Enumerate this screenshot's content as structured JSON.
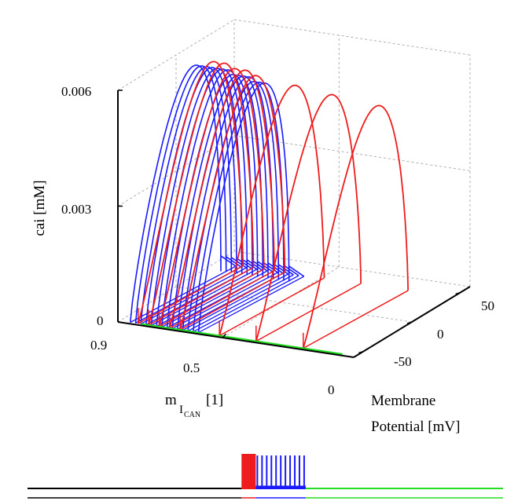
{
  "chart_data": [
    {
      "type": "line-3d",
      "title": "",
      "axes": {
        "z": {
          "label": "cai [mM]",
          "range": [
            0,
            0.006
          ],
          "ticks": [
            "0",
            "0.003",
            "0.006"
          ]
        },
        "x": {
          "label_main": "m",
          "label_sub_I": "I",
          "label_sub_CAN": "CAN",
          "label_unit": " [1]",
          "range": [
            0.9,
            0
          ],
          "ticks": [
            "0.9",
            "0.5",
            "0"
          ]
        },
        "y": {
          "label_line1": "Membrane",
          "label_line2": "Potential [mV]",
          "range": [
            -60,
            60
          ],
          "ticks": [
            "50",
            "0",
            "-50"
          ]
        }
      },
      "grid": true,
      "colors": {
        "blue": "#1a1aff",
        "red": "#ee1c1c",
        "green": "#22dd22",
        "black": "#000000",
        "grid": "#b0b0b0"
      },
      "series": [
        {
          "color": "blue",
          "loops": [
            {
              "m": 0.86,
              "cai_peak": 0.0057
            },
            {
              "m": 0.84,
              "cai_peak": 0.0057
            },
            {
              "m": 0.82,
              "cai_peak": 0.0057
            },
            {
              "m": 0.8,
              "cai_peak": 0.0057
            },
            {
              "m": 0.78,
              "cai_peak": 0.0057
            },
            {
              "m": 0.76,
              "cai_peak": 0.0057
            },
            {
              "m": 0.74,
              "cai_peak": 0.0057
            },
            {
              "m": 0.72,
              "cai_peak": 0.0056
            },
            {
              "m": 0.7,
              "cai_peak": 0.0056
            },
            {
              "m": 0.68,
              "cai_peak": 0.0056
            },
            {
              "m": 0.66,
              "cai_peak": 0.0056
            },
            {
              "m": 0.64,
              "cai_peak": 0.0055
            },
            {
              "m": 0.62,
              "cai_peak": 0.0055
            },
            {
              "m": 0.6,
              "cai_peak": 0.0055
            }
          ]
        },
        {
          "color": "red",
          "loops": [
            {
              "m": 0.83,
              "cai_peak": 0.0057
            },
            {
              "m": 0.79,
              "cai_peak": 0.0057
            },
            {
              "m": 0.75,
              "cai_peak": 0.0056
            },
            {
              "m": 0.71,
              "cai_peak": 0.0056
            },
            {
              "m": 0.67,
              "cai_peak": 0.0055
            },
            {
              "m": 0.52,
              "cai_peak": 0.0054
            },
            {
              "m": 0.38,
              "cai_peak": 0.0053
            },
            {
              "m": 0.2,
              "cai_peak": 0.0052
            }
          ]
        },
        {
          "color": "green",
          "path_m": [
            0.82,
            0.6,
            0.4,
            0.2,
            0.05
          ],
          "v": -58,
          "cai": 0
        }
      ]
    },
    {
      "type": "line",
      "title": "",
      "description_segments": [
        {
          "color": "black",
          "x": [
            0,
            0.45
          ]
        },
        {
          "color": "red",
          "x": [
            0.45,
            0.48
          ]
        },
        {
          "color": "blue",
          "x": [
            0.48,
            0.585
          ]
        },
        {
          "color": "green",
          "x": [
            0.585,
            1.0
          ]
        }
      ],
      "spikes": {
        "red_count": 4,
        "blue_count": 11
      }
    }
  ]
}
